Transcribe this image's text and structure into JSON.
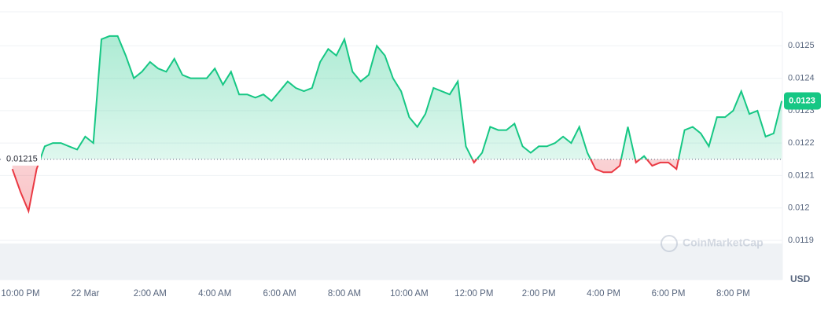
{
  "chart_data": {
    "type": "line",
    "categories": [
      null,
      "10:00 PM",
      null,
      null,
      null,
      null,
      null,
      null,
      null,
      "22 Mar",
      null,
      null,
      null,
      null,
      null,
      null,
      null,
      "2:00 AM",
      null,
      null,
      null,
      null,
      null,
      null,
      null,
      "4:00 AM",
      null,
      null,
      null,
      null,
      null,
      null,
      null,
      "6:00 AM",
      null,
      null,
      null,
      null,
      null,
      null,
      null,
      "8:00 AM",
      null,
      null,
      null,
      null,
      null,
      null,
      null,
      "10:00 AM",
      null,
      null,
      null,
      null,
      null,
      null,
      null,
      "12:00 PM",
      null,
      null,
      null,
      null,
      null,
      null,
      null,
      "2:00 PM",
      null,
      null,
      null,
      null,
      null,
      null,
      null,
      "4:00 PM",
      null,
      null,
      null,
      null,
      null,
      null,
      null,
      "6:00 PM",
      null,
      null,
      null,
      null,
      null,
      null,
      null,
      "8:00 PM",
      null,
      null,
      null,
      null,
      null,
      null
    ],
    "values": [
      0.01212,
      0.01205,
      0.01199,
      0.01212,
      0.01219,
      0.0122,
      0.0122,
      0.01219,
      0.01218,
      0.01222,
      0.0122,
      0.01252,
      0.01253,
      0.01253,
      0.01247,
      0.0124,
      0.01242,
      0.01245,
      0.01243,
      0.01242,
      0.01246,
      0.01241,
      0.0124,
      0.0124,
      0.0124,
      0.01243,
      0.01238,
      0.01242,
      0.01235,
      0.01235,
      0.01234,
      0.01235,
      0.01233,
      0.01236,
      0.01239,
      0.01237,
      0.01236,
      0.01237,
      0.01245,
      0.01249,
      0.01247,
      0.01252,
      0.01242,
      0.01239,
      0.01241,
      0.0125,
      0.01247,
      0.0124,
      0.01236,
      0.01228,
      0.01225,
      0.01229,
      0.01237,
      0.01236,
      0.01235,
      0.01239,
      0.01219,
      0.01214,
      0.01217,
      0.01225,
      0.01224,
      0.01224,
      0.01226,
      0.01219,
      0.01217,
      0.01219,
      0.01219,
      0.0122,
      0.01222,
      0.0122,
      0.01225,
      0.01217,
      0.01212,
      0.01211,
      0.01211,
      0.01213,
      0.01225,
      0.01214,
      0.01216,
      0.01213,
      0.01214,
      0.01214,
      0.01212,
      0.01224,
      0.01225,
      0.01223,
      0.01219,
      0.01228,
      0.01228,
      0.0123,
      0.01236,
      0.01229,
      0.0123,
      0.01222,
      0.01223,
      0.01233
    ],
    "baseline": 0.01215,
    "price_tag": "0.0123",
    "up_color": "#16c784",
    "down_color": "#ea3943",
    "ylim": [
      0.0119,
      0.0126
    ],
    "yticks": [
      0.0119,
      0.012,
      0.0121,
      0.0122,
      0.0123,
      0.0124,
      0.0125
    ],
    "grid": true,
    "currency": "USD",
    "watermark": "CoinMarketCap"
  }
}
